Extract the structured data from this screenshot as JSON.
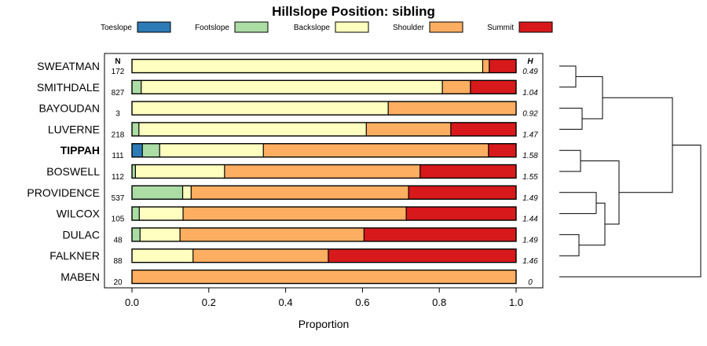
{
  "chart_data": {
    "type": "bar",
    "orientation": "horizontal",
    "stacked": true,
    "title": "Hillslope Position: sibling",
    "xlabel": "Proportion",
    "xlim": [
      0,
      1
    ],
    "xticks": [
      "0.0",
      "0.2",
      "0.4",
      "0.6",
      "0.8",
      "1.0"
    ],
    "legend_position": "top",
    "n_header": "N",
    "h_header": "H",
    "series": [
      {
        "name": "Toeslope",
        "color": "#2c7bb6"
      },
      {
        "name": "Footslope",
        "color": "#abdda4"
      },
      {
        "name": "Backslope",
        "color": "#ffffbf"
      },
      {
        "name": "Shoulder",
        "color": "#fdae61"
      },
      {
        "name": "Summit",
        "color": "#d7191c"
      }
    ],
    "rows": [
      {
        "name": "SWEATMAN",
        "n": "172",
        "h": "0.49",
        "bold": false,
        "values": [
          0,
          0,
          0.913,
          0.017,
          0.07
        ]
      },
      {
        "name": "SMITHDALE",
        "n": "827",
        "h": "1.04",
        "bold": false,
        "values": [
          0,
          0.024,
          0.784,
          0.073,
          0.119
        ]
      },
      {
        "name": "BAYOUDAN",
        "n": "3",
        "h": "0.92",
        "bold": false,
        "values": [
          0,
          0,
          0.667,
          0.333,
          0
        ]
      },
      {
        "name": "LUVERNE",
        "n": "218",
        "h": "1.47",
        "bold": false,
        "values": [
          0,
          0.018,
          0.592,
          0.22,
          0.17
        ]
      },
      {
        "name": "TIPPAH",
        "n": "111",
        "h": "1.58",
        "bold": true,
        "values": [
          0.027,
          0.045,
          0.27,
          0.586,
          0.072
        ]
      },
      {
        "name": "BOSWELL",
        "n": "112",
        "h": "1.55",
        "bold": false,
        "values": [
          0,
          0.009,
          0.232,
          0.509,
          0.25
        ]
      },
      {
        "name": "PROVIDENCE",
        "n": "537",
        "h": "1.49",
        "bold": false,
        "values": [
          0,
          0.132,
          0.022,
          0.566,
          0.28
        ]
      },
      {
        "name": "WILCOX",
        "n": "105",
        "h": "1.44",
        "bold": false,
        "values": [
          0,
          0.019,
          0.114,
          0.581,
          0.286
        ]
      },
      {
        "name": "DULAC",
        "n": "48",
        "h": "1.49",
        "bold": false,
        "values": [
          0,
          0.021,
          0.104,
          0.479,
          0.396
        ]
      },
      {
        "name": "FALKNER",
        "n": "88",
        "h": "1.46",
        "bold": false,
        "values": [
          0,
          0,
          0.159,
          0.352,
          0.489
        ]
      },
      {
        "name": "MABEN",
        "n": "20",
        "h": "0",
        "bold": false,
        "values": [
          0,
          0,
          0,
          1.0,
          0
        ]
      }
    ]
  }
}
